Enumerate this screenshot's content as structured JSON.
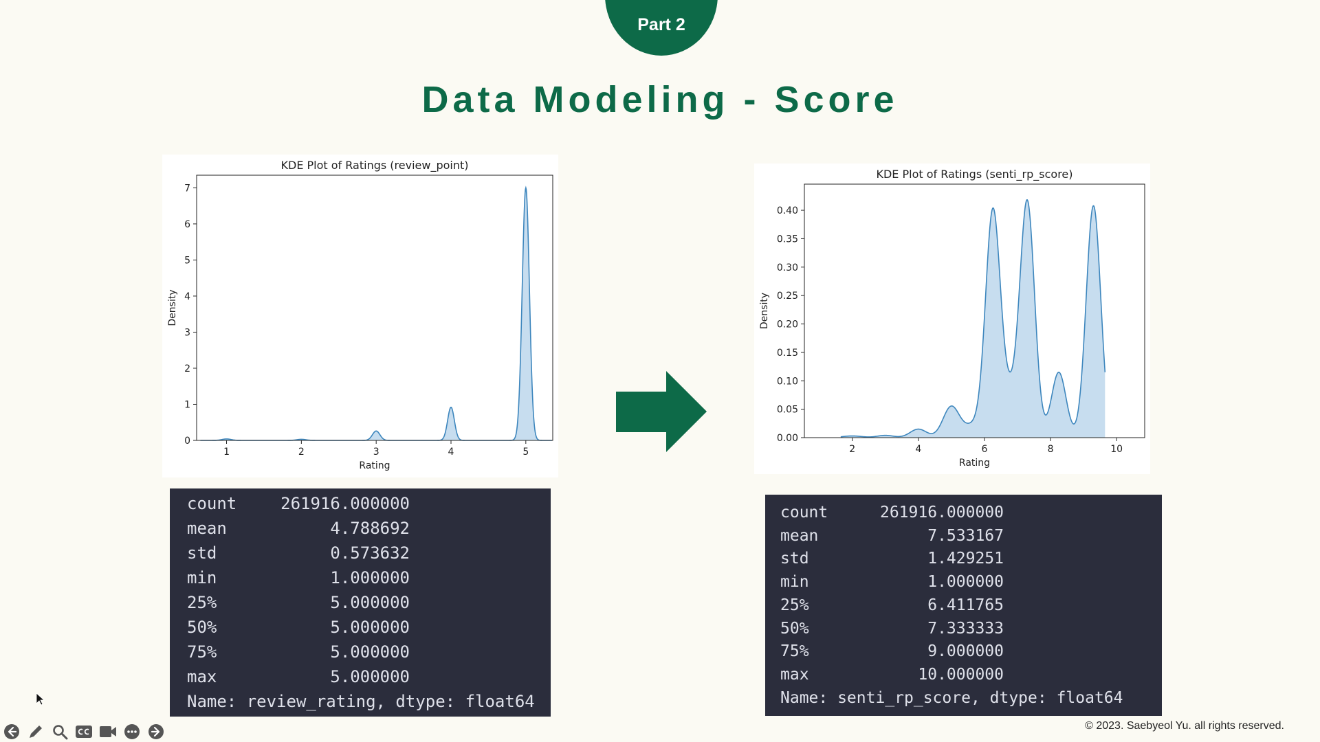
{
  "header": {
    "part_label": "Part 2",
    "title": "Data Modeling - Score"
  },
  "colors": {
    "accent": "#0d6a48",
    "kde_line": "#3d86bd",
    "kde_fill": "#c4dbee",
    "stats_bg": "#2b2d3c"
  },
  "chart_data": [
    {
      "type": "area",
      "title": "KDE Plot of Ratings (review_point)",
      "xlabel": "Rating",
      "ylabel": "Density",
      "xlim": [
        0.6,
        5.36
      ],
      "ylim": [
        0,
        7.35
      ],
      "x_ticks": [
        "1",
        "2",
        "3",
        "4",
        "5"
      ],
      "y_ticks": [
        "0",
        "1",
        "2",
        "3",
        "4",
        "5",
        "6",
        "7"
      ],
      "peaks": [
        {
          "x": 1.0,
          "height": 0.04,
          "width": 0.06
        },
        {
          "x": 2.0,
          "height": 0.03,
          "width": 0.06
        },
        {
          "x": 3.0,
          "height": 0.26,
          "width": 0.05
        },
        {
          "x": 4.0,
          "height": 0.92,
          "width": 0.045
        },
        {
          "x": 5.0,
          "height": 7.0,
          "width": 0.048
        }
      ]
    },
    {
      "type": "area",
      "title": "KDE Plot of Ratings (senti_rp_score)",
      "xlabel": "Rating",
      "ylabel": "Density",
      "xlim": [
        0.55,
        10.85
      ],
      "ylim": [
        0,
        0.446
      ],
      "x_ticks": [
        "2",
        "4",
        "6",
        "8",
        "10"
      ],
      "y_ticks": [
        "0.00",
        "0.05",
        "0.10",
        "0.15",
        "0.20",
        "0.25",
        "0.30",
        "0.35",
        "0.40"
      ],
      "peaks": [
        {
          "x": 2.0,
          "height": 0.003,
          "width": 0.3
        },
        {
          "x": 3.0,
          "height": 0.004,
          "width": 0.25
        },
        {
          "x": 4.0,
          "height": 0.015,
          "width": 0.25
        },
        {
          "x": 5.0,
          "height": 0.055,
          "width": 0.25
        },
        {
          "x": 5.65,
          "height": 0.02,
          "width": 0.25
        },
        {
          "x": 6.25,
          "height": 0.385,
          "width": 0.22
        },
        {
          "x": 6.75,
          "height": 0.07,
          "width": 0.3
        },
        {
          "x": 7.3,
          "height": 0.405,
          "width": 0.22
        },
        {
          "x": 8.25,
          "height": 0.115,
          "width": 0.22
        },
        {
          "x": 9.3,
          "height": 0.408,
          "width": 0.22
        }
      ]
    }
  ],
  "stats": [
    {
      "rows": [
        {
          "key": "count",
          "value": "261916.000000"
        },
        {
          "key": "mean",
          "value": "4.788692"
        },
        {
          "key": "std",
          "value": "0.573632"
        },
        {
          "key": "min",
          "value": "1.000000"
        },
        {
          "key": "25%",
          "value": "5.000000"
        },
        {
          "key": "50%",
          "value": "5.000000"
        },
        {
          "key": "75%",
          "value": "5.000000"
        },
        {
          "key": "max",
          "value": "5.000000"
        }
      ],
      "footer": "Name: review_rating, dtype: float64"
    },
    {
      "rows": [
        {
          "key": "count",
          "value": "261916.000000"
        },
        {
          "key": "mean",
          "value": "7.533167"
        },
        {
          "key": "std",
          "value": "1.429251"
        },
        {
          "key": "min",
          "value": "1.000000"
        },
        {
          "key": "25%",
          "value": "6.411765"
        },
        {
          "key": "50%",
          "value": "7.333333"
        },
        {
          "key": "75%",
          "value": "9.000000"
        },
        {
          "key": "max",
          "value": "10.000000"
        }
      ],
      "footer": "Name: senti_rp_score, dtype: float64"
    }
  ],
  "footer": {
    "copyright": "© 2023. Saebyeol Yu. all rights reserved."
  },
  "toolbar": [
    {
      "name": "previous-slide-icon"
    },
    {
      "name": "pen-icon"
    },
    {
      "name": "zoom-icon"
    },
    {
      "name": "captions-icon"
    },
    {
      "name": "camera-icon"
    },
    {
      "name": "more-options-icon"
    },
    {
      "name": "next-slide-icon"
    }
  ]
}
